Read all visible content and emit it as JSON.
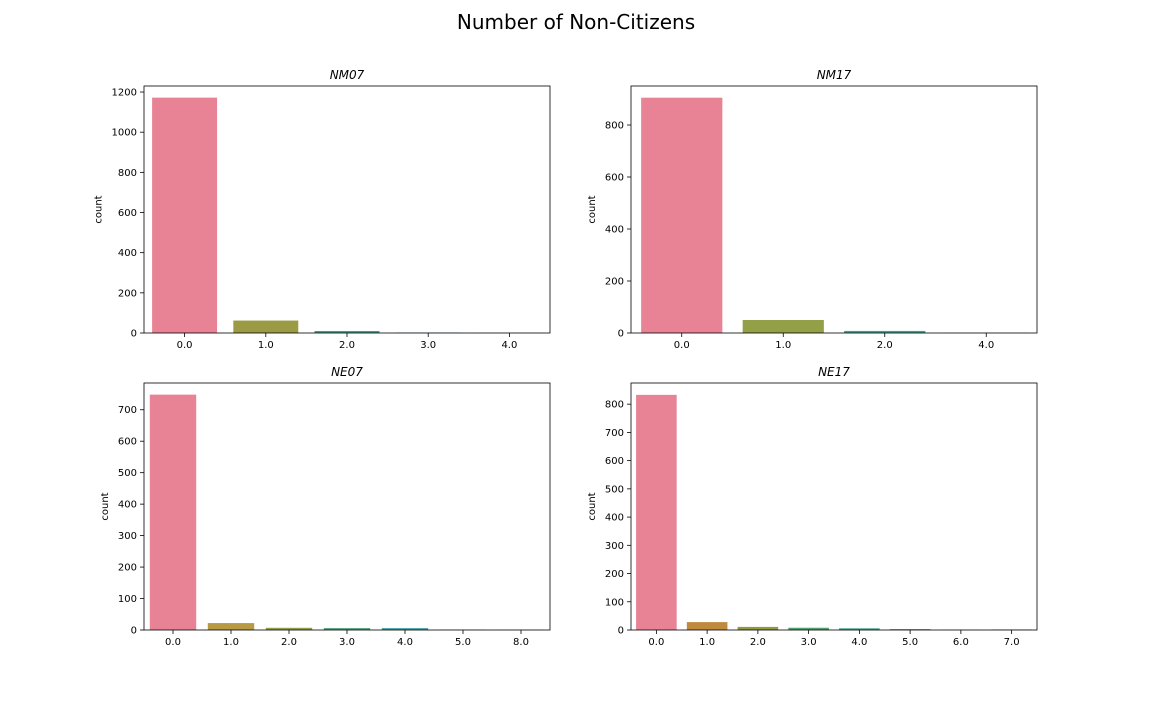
{
  "suptitle": "Number of Non-Citizens",
  "chart_data": [
    {
      "type": "bar",
      "title": "NM07",
      "xlabel": "",
      "ylabel": "count",
      "categories": [
        "0.0",
        "1.0",
        "2.0",
        "3.0",
        "4.0"
      ],
      "values": [
        1172,
        62,
        10,
        2,
        1
      ],
      "colors": [
        "#e88295",
        "#9c9b45",
        "#3f9f8c",
        "#4a9ec1",
        "#c99ae6"
      ],
      "yticks": [
        0,
        200,
        400,
        600,
        800,
        1000,
        1200
      ],
      "ylim": [
        0,
        1230
      ]
    },
    {
      "type": "bar",
      "title": "NM17",
      "xlabel": "",
      "ylabel": "count",
      "categories": [
        "0.0",
        "1.0",
        "2.0",
        "4.0"
      ],
      "values": [
        905,
        50,
        8,
        1
      ],
      "colors": [
        "#e88295",
        "#94a047",
        "#3fa098",
        "#c99ae6"
      ],
      "yticks": [
        0,
        200,
        400,
        600,
        800
      ],
      "ylim": [
        0,
        950
      ]
    },
    {
      "type": "bar",
      "title": "NE07",
      "xlabel": "",
      "ylabel": "count",
      "categories": [
        "0.0",
        "1.0",
        "2.0",
        "3.0",
        "4.0",
        "5.0",
        "8.0"
      ],
      "values": [
        748,
        22,
        7,
        6,
        6,
        1,
        1
      ],
      "colors": [
        "#e88295",
        "#b99a44",
        "#8f9f47",
        "#4aa07a",
        "#3f9fa5",
        "#6aa2d8",
        "#d88ce6"
      ],
      "yticks": [
        0,
        100,
        200,
        300,
        400,
        500,
        600,
        700
      ],
      "ylim": [
        0,
        785
      ]
    },
    {
      "type": "bar",
      "title": "NE17",
      "xlabel": "",
      "ylabel": "count",
      "categories": [
        "0.0",
        "1.0",
        "2.0",
        "3.0",
        "4.0",
        "5.0",
        "6.0",
        "7.0"
      ],
      "values": [
        833,
        28,
        11,
        8,
        6,
        3,
        1,
        2
      ],
      "colors": [
        "#e88295",
        "#bf8a3f",
        "#939a3e",
        "#4fa16e",
        "#3fa08f",
        "#3fa0ae",
        "#8aa0dc",
        "#d88ce6"
      ],
      "yticks": [
        0,
        100,
        200,
        300,
        400,
        500,
        600,
        700,
        800
      ],
      "ylim": [
        0,
        875
      ]
    }
  ]
}
